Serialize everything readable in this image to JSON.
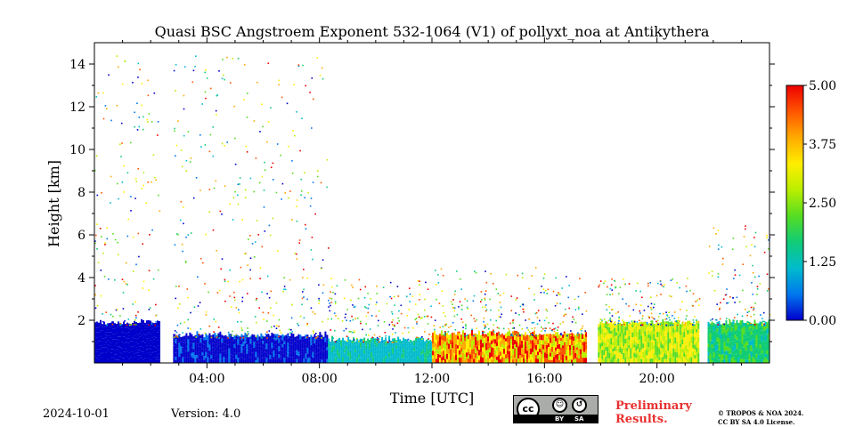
{
  "chart_data": {
    "type": "heatmap",
    "title": "Quasi BSC Angstroem Exponent 532-1064 (V1) of pollyxt_noa at Antikythera",
    "xlabel": "Time [UTC]",
    "ylabel": "Height [km]",
    "xlim": [
      "00:00",
      "24:00"
    ],
    "ylim": [
      0,
      15
    ],
    "x_ticks": [
      "04:00",
      "08:00",
      "12:00",
      "16:00",
      "20:00"
    ],
    "x_tick_hours": [
      4,
      8,
      12,
      16,
      20
    ],
    "y_ticks": [
      "2",
      "4",
      "6",
      "8",
      "10",
      "12",
      "14"
    ],
    "y_tick_values": [
      2,
      4,
      6,
      8,
      10,
      12,
      14
    ],
    "colorbar": {
      "range": [
        0,
        5
      ],
      "ticks": [
        "0.00",
        "1.25",
        "2.50",
        "3.75",
        "5.00"
      ],
      "tick_values": [
        0,
        1.25,
        2.5,
        3.75,
        5
      ],
      "colormap": [
        "#0000cc",
        "#0077ee",
        "#00bbcc",
        "#11cc77",
        "#55dd22",
        "#bbee00",
        "#ffee00",
        "#ffaa00",
        "#ff5500",
        "#ee0000"
      ]
    },
    "data_gaps_utc": [
      [
        "02:18",
        "02:48"
      ],
      [
        "17:30",
        "17:54"
      ],
      [
        "21:30",
        "21:48"
      ]
    ],
    "segments": [
      {
        "start": "00:00",
        "end": "02:18",
        "aerosol_top_km": 1.8,
        "exponent_range": [
          0.0,
          0.5
        ],
        "noise_top_km": 14.5
      },
      {
        "start": "02:48",
        "end": "08:18",
        "aerosol_top_km": 1.2,
        "exponent_range": [
          0.0,
          0.6
        ],
        "noise_top_km": 14.5
      },
      {
        "start": "08:18",
        "end": "12:00",
        "aerosol_top_km": 1.0,
        "exponent_range": [
          1.0,
          1.6
        ],
        "noise_top_km": 4.0
      },
      {
        "start": "12:00",
        "end": "17:30",
        "aerosol_top_km": 1.3,
        "exponent_range": [
          2.5,
          5.0
        ],
        "noise_top_km": 4.5
      },
      {
        "start": "17:54",
        "end": "21:30",
        "aerosol_top_km": 1.8,
        "exponent_range": [
          2.2,
          3.5
        ],
        "noise_top_km": 4.0
      },
      {
        "start": "21:48",
        "end": "24:00",
        "aerosol_top_km": 1.8,
        "exponent_range": [
          1.4,
          2.2
        ],
        "noise_top_km": 6.5
      }
    ]
  },
  "footer": {
    "date": "2024-10-01",
    "version": "Version: 4.0",
    "cc": "cc",
    "by": "BY",
    "sa": "SA",
    "preliminary_line1": "Preliminary",
    "preliminary_line2": "Results.",
    "license_line1": "© TROPOS & NOA 2024.",
    "license_line2": "CC BY SA 4.0 License."
  }
}
